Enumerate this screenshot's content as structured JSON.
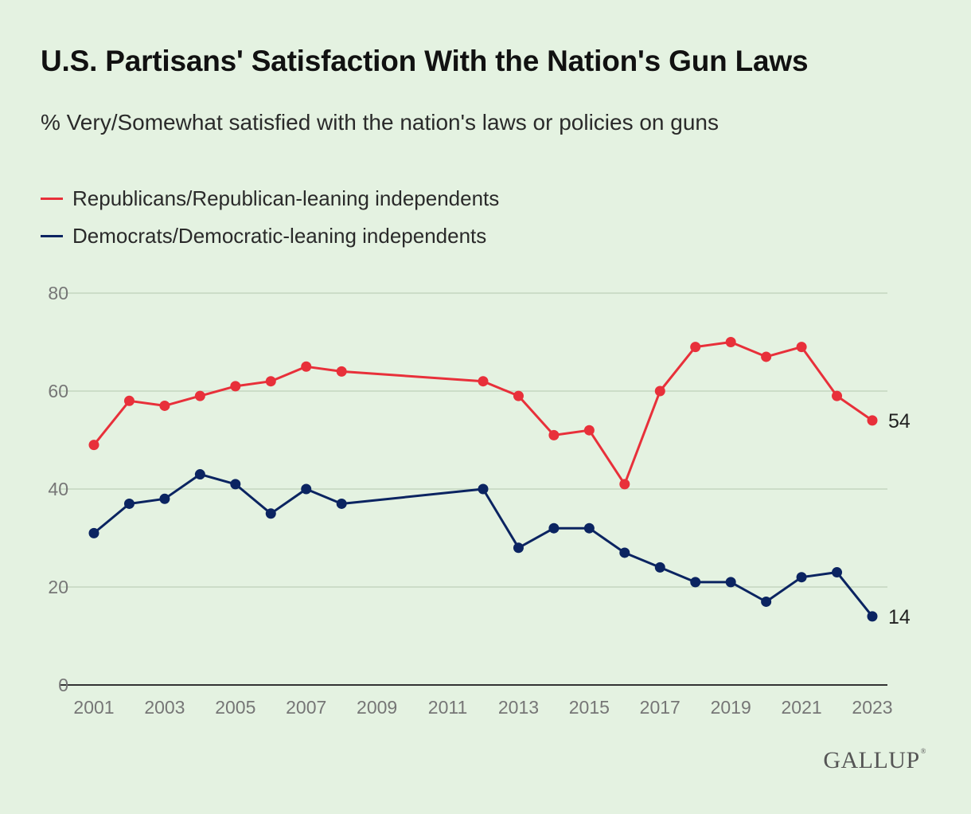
{
  "header": {
    "title": "U.S. Partisans' Satisfaction With the Nation's Gun Laws",
    "subtitle": "% Very/Somewhat satisfied with the nation's laws or policies on guns"
  },
  "logo": {
    "text": "GALLUP",
    "mark": "®"
  },
  "chart_data": {
    "type": "line",
    "title": "U.S. Partisans' Satisfaction With the Nation's Gun Laws",
    "subtitle": "% Very/Somewhat satisfied with the nation's laws or policies on guns",
    "xlabel": "",
    "ylabel": "",
    "ylim": [
      0,
      80
    ],
    "yticks": [
      0,
      20,
      40,
      60,
      80
    ],
    "xlim": [
      2001,
      2023
    ],
    "xticks": [
      2001,
      2003,
      2005,
      2007,
      2009,
      2011,
      2013,
      2015,
      2017,
      2019,
      2021,
      2023
    ],
    "grid": true,
    "legend_position": "top-left",
    "x": [
      2001,
      2002,
      2003,
      2004,
      2005,
      2006,
      2007,
      2008,
      2012,
      2013,
      2014,
      2015,
      2016,
      2017,
      2018,
      2019,
      2020,
      2021,
      2022,
      2023
    ],
    "series": [
      {
        "name": "Republicans/Republican-leaning independents",
        "color": "#e8303a",
        "values": [
          49,
          58,
          57,
          59,
          61,
          62,
          65,
          64,
          62,
          59,
          51,
          52,
          41,
          60,
          69,
          70,
          67,
          69,
          59,
          54
        ],
        "end_label": "54"
      },
      {
        "name": "Democrats/Democratic-leaning independents",
        "color": "#0b2461",
        "values": [
          31,
          37,
          38,
          43,
          41,
          35,
          40,
          37,
          40,
          28,
          32,
          32,
          27,
          24,
          21,
          21,
          17,
          22,
          23,
          14
        ],
        "end_label": "14"
      }
    ]
  }
}
